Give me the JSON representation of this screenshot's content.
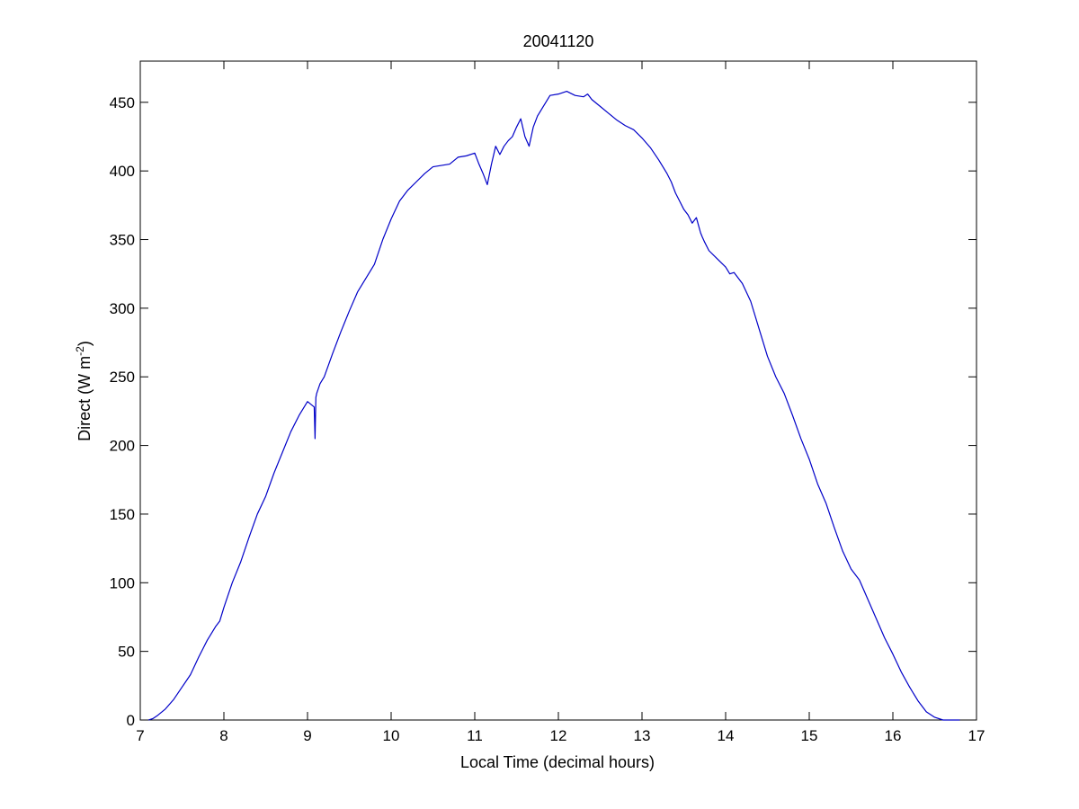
{
  "chart_data": {
    "type": "line",
    "title": "20041120",
    "xlabel": "Local Time (decimal hours)",
    "ylabel": {
      "main": "Direct (W m",
      "sup": "-2",
      "close": ")"
    },
    "xlim": [
      7,
      17
    ],
    "ylim": [
      0,
      480
    ],
    "xticks": [
      7,
      8,
      9,
      10,
      11,
      12,
      13,
      14,
      15,
      16,
      17
    ],
    "yticks": [
      0,
      50,
      100,
      150,
      200,
      250,
      300,
      350,
      400,
      450
    ],
    "grid": false,
    "line_color": "#0000c8",
    "series": [
      {
        "x": [
          7.1,
          7.15,
          7.2,
          7.3,
          7.4,
          7.5,
          7.6,
          7.7,
          7.75,
          7.8,
          7.9,
          7.95,
          8.0,
          8.1,
          8.2,
          8.3,
          8.4,
          8.5,
          8.6,
          8.7,
          8.8,
          8.9,
          9.0,
          9.08,
          9.09,
          9.1,
          9.11,
          9.15,
          9.2,
          9.3,
          9.4,
          9.5,
          9.6,
          9.7,
          9.8,
          9.9,
          10.0,
          10.1,
          10.2,
          10.3,
          10.4,
          10.5,
          10.6,
          10.7,
          10.8,
          10.9,
          11.0,
          11.05,
          11.1,
          11.15,
          11.2,
          11.25,
          11.3,
          11.35,
          11.4,
          11.45,
          11.5,
          11.55,
          11.6,
          11.65,
          11.7,
          11.75,
          11.8,
          11.9,
          12.0,
          12.1,
          12.2,
          12.3,
          12.35,
          12.4,
          12.5,
          12.6,
          12.7,
          12.8,
          12.9,
          13.0,
          13.1,
          13.2,
          13.3,
          13.35,
          13.4,
          13.45,
          13.5,
          13.55,
          13.6,
          13.65,
          13.7,
          13.72,
          13.75,
          13.8,
          13.9,
          14.0,
          14.05,
          14.1,
          14.2,
          14.3,
          14.4,
          14.5,
          14.6,
          14.7,
          14.8,
          14.9,
          15.0,
          15.1,
          15.2,
          15.3,
          15.4,
          15.5,
          15.6,
          15.7,
          15.8,
          15.9,
          16.0,
          16.1,
          16.2,
          16.3,
          16.4,
          16.5,
          16.6,
          16.7,
          16.8
        ],
        "y": [
          0,
          1,
          3,
          8,
          15,
          24,
          33,
          46,
          52,
          58,
          68,
          72,
          82,
          100,
          115,
          133,
          150,
          163,
          180,
          195,
          210,
          222,
          232,
          228,
          205,
          235,
          238,
          245,
          250,
          267,
          283,
          298,
          312,
          322,
          332,
          350,
          365,
          378,
          386,
          392,
          398,
          403,
          404,
          405,
          410,
          411,
          413,
          405,
          398,
          390,
          405,
          418,
          412,
          418,
          422,
          425,
          432,
          438,
          425,
          418,
          432,
          440,
          445,
          455,
          456,
          458,
          455,
          454,
          456,
          452,
          447,
          442,
          437,
          433,
          430,
          424,
          417,
          408,
          398,
          392,
          384,
          378,
          372,
          368,
          362,
          366,
          355,
          352,
          348,
          342,
          336,
          330,
          325,
          326,
          318,
          305,
          285,
          265,
          250,
          238,
          222,
          205,
          190,
          172,
          158,
          140,
          123,
          110,
          102,
          88,
          74,
          60,
          48,
          35,
          24,
          14,
          6,
          2,
          0,
          0,
          0
        ]
      }
    ]
  }
}
